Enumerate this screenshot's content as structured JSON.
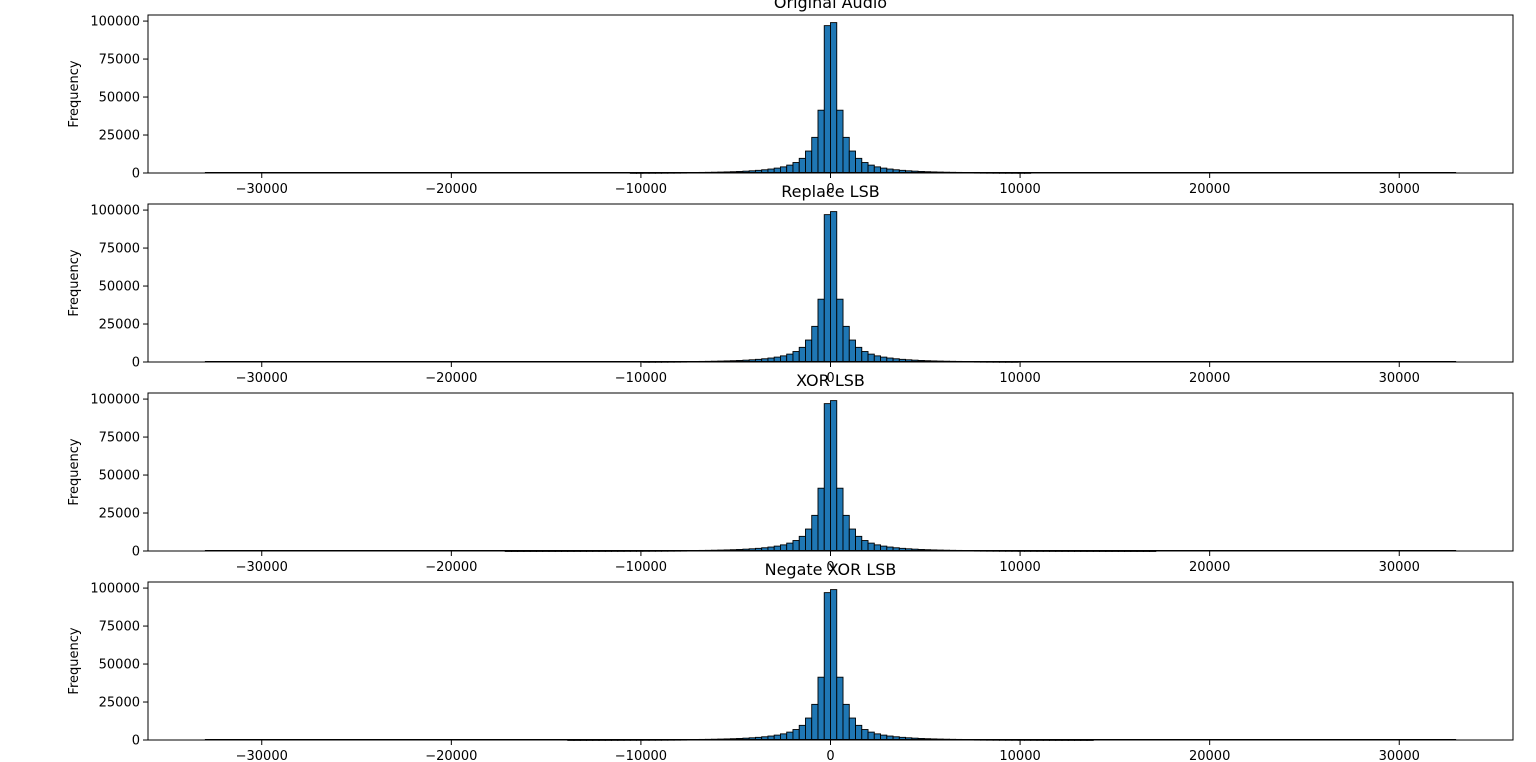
{
  "chart_data": [
    {
      "type": "bar",
      "title": "Original Audio",
      "ylabel": "Frequency",
      "xlim": [
        -36000,
        36000
      ],
      "ylim": [
        0,
        104000
      ],
      "xticks": [
        -30000,
        -20000,
        -10000,
        0,
        10000,
        20000,
        30000
      ],
      "xtick_labels": [
        "−30000",
        "−20000",
        "−10000",
        "0",
        "10000",
        "20000",
        "30000"
      ],
      "yticks": [
        0,
        25000,
        50000,
        75000,
        100000
      ],
      "ytick_labels": [
        "0",
        "25000",
        "50000",
        "75000",
        "100000"
      ],
      "bar_color": "#1f77b4",
      "edge_color": "#000000",
      "bin_width": 330,
      "support": [
        -33000,
        33000
      ],
      "peak_x": [
        -165,
        165
      ],
      "peak_values": [
        97000,
        99000
      ],
      "spread": 1500,
      "tail": [
        -10500,
        10500
      ]
    },
    {
      "type": "bar",
      "title": "Replace LSB",
      "ylabel": "Frequency",
      "xlim": [
        -36000,
        36000
      ],
      "ylim": [
        0,
        104000
      ],
      "xticks": [
        -30000,
        -20000,
        -10000,
        0,
        10000,
        20000,
        30000
      ],
      "xtick_labels": [
        "−30000",
        "−20000",
        "−10000",
        "0",
        "10000",
        "20000",
        "30000"
      ],
      "yticks": [
        0,
        25000,
        50000,
        75000,
        100000
      ],
      "ytick_labels": [
        "0",
        "25000",
        "50000",
        "75000",
        "100000"
      ],
      "bar_color": "#1f77b4",
      "edge_color": "#000000",
      "bin_width": 330,
      "support": [
        -33000,
        33000
      ],
      "peak_x": [
        -165,
        165
      ],
      "peak_values": [
        97000,
        99000
      ],
      "spread": 1500,
      "tail": [
        -10000,
        10000
      ]
    },
    {
      "type": "bar",
      "title": "XOR LSB",
      "ylabel": "Frequency",
      "xlim": [
        -36000,
        36000
      ],
      "ylim": [
        0,
        104000
      ],
      "xticks": [
        -30000,
        -20000,
        -10000,
        0,
        10000,
        20000,
        30000
      ],
      "xtick_labels": [
        "−30000",
        "−20000",
        "−10000",
        "0",
        "10000",
        "20000",
        "30000"
      ],
      "yticks": [
        0,
        25000,
        50000,
        75000,
        100000
      ],
      "ytick_labels": [
        "0",
        "25000",
        "50000",
        "75000",
        "100000"
      ],
      "bar_color": "#1f77b4",
      "edge_color": "#000000",
      "bin_width": 330,
      "support": [
        -33000,
        33000
      ],
      "peak_x": [
        -165,
        165
      ],
      "peak_values": [
        97000,
        99000
      ],
      "spread": 1500,
      "tail": [
        -17000,
        17000
      ]
    },
    {
      "type": "bar",
      "title": "Negate XOR LSB",
      "ylabel": "Frequency",
      "xlim": [
        -36000,
        36000
      ],
      "ylim": [
        0,
        104000
      ],
      "xticks": [
        -30000,
        -20000,
        -10000,
        0,
        10000,
        20000,
        30000
      ],
      "xtick_labels": [
        "−30000",
        "−20000",
        "−10000",
        "0",
        "10000",
        "20000",
        "30000"
      ],
      "yticks": [
        0,
        25000,
        50000,
        75000,
        100000
      ],
      "ytick_labels": [
        "0",
        "25000",
        "50000",
        "75000",
        "100000"
      ],
      "bar_color": "#1f77b4",
      "edge_color": "#000000",
      "bin_width": 330,
      "support": [
        -33000,
        33000
      ],
      "peak_x": [
        -165,
        165
      ],
      "peak_values": [
        97000,
        99000
      ],
      "spread": 1500,
      "tail": [
        -14000,
        14000
      ]
    }
  ]
}
